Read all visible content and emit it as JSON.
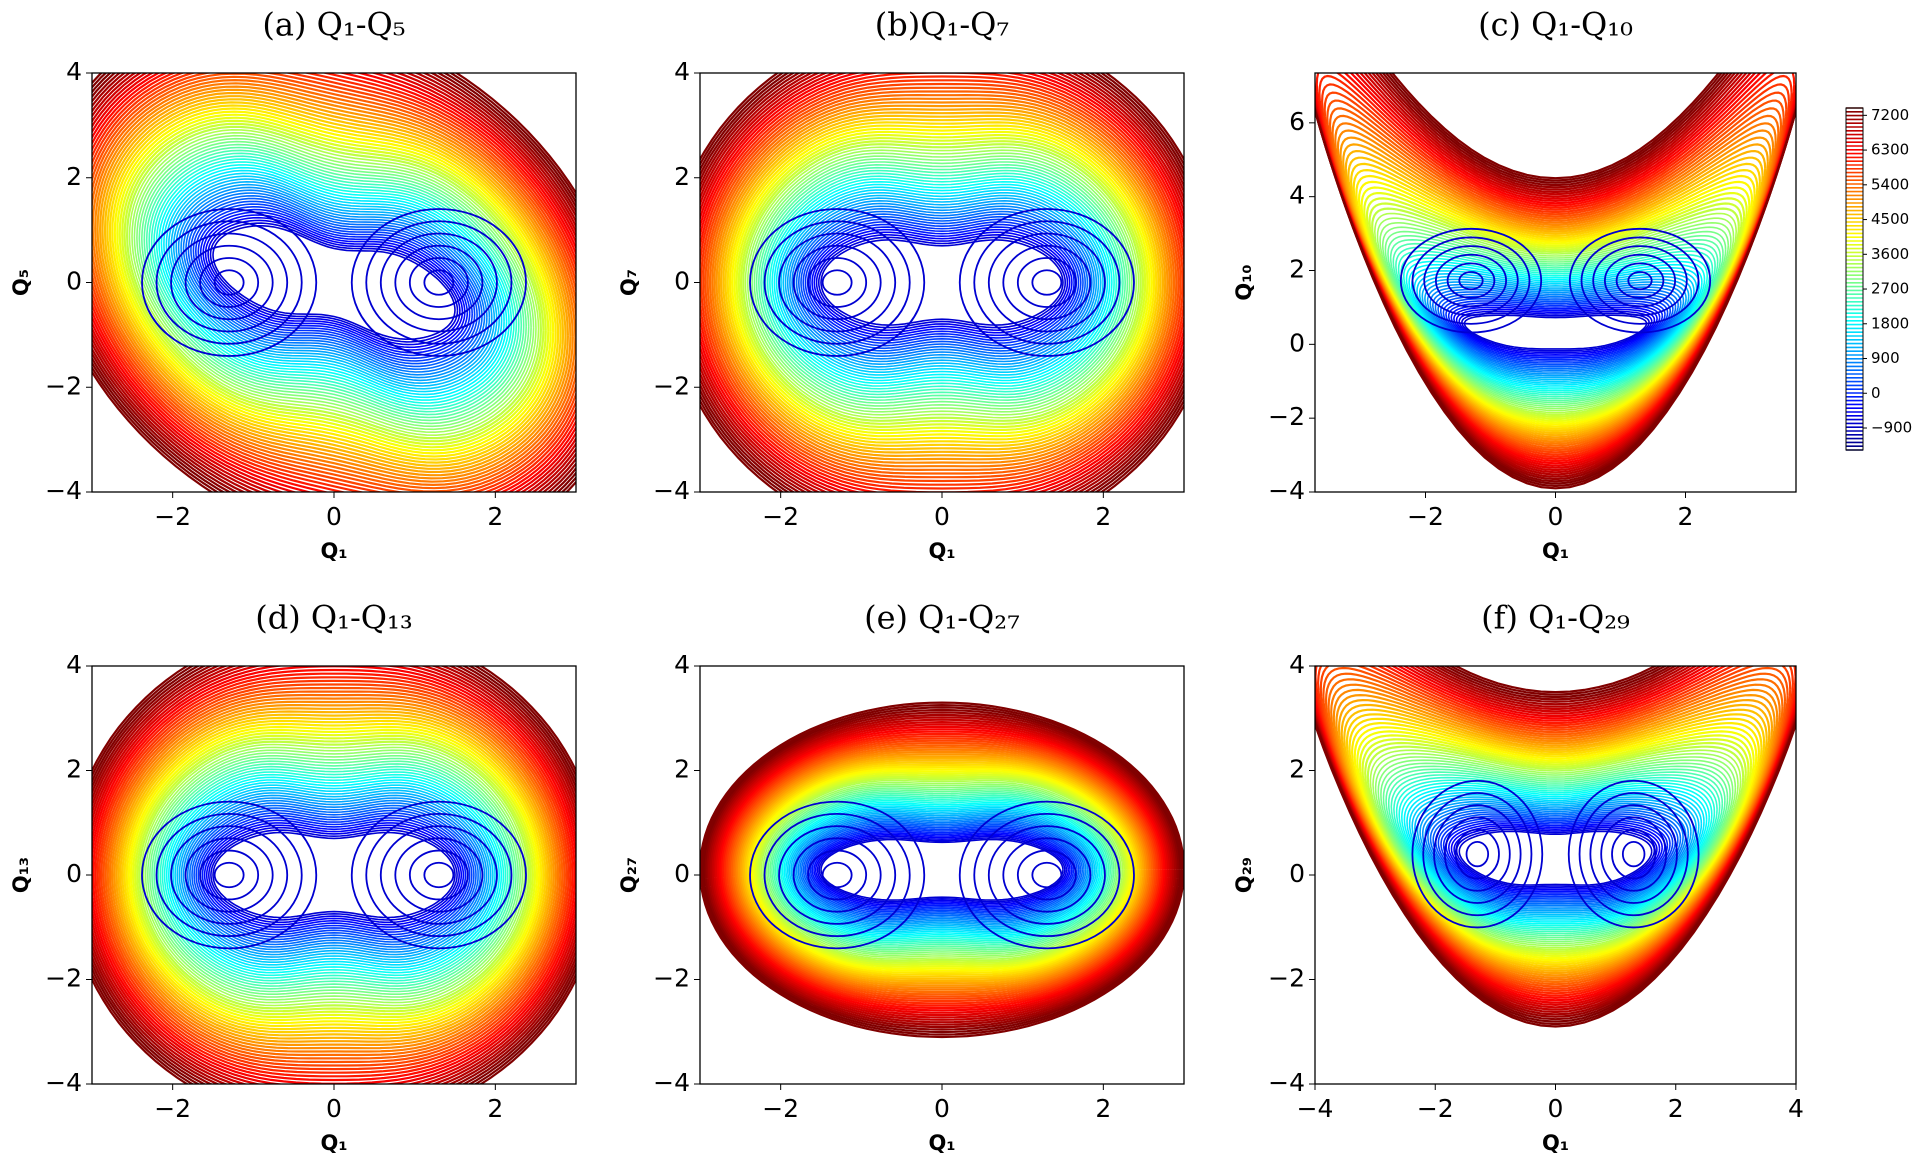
{
  "chart_data": [
    {
      "type": "contour",
      "title": "(a) Q₁-Q₅",
      "x_label": "Q₁",
      "y_label": "Q₅",
      "xlim": [
        -3,
        3
      ],
      "ylim": [
        -4,
        4
      ],
      "xticks": [
        {
          "value": -2,
          "label": "−2"
        },
        0,
        2
      ],
      "yticks": [
        {
          "value": -4,
          "label": "−4"
        },
        {
          "value": -2,
          "label": "−2"
        },
        0,
        2,
        4
      ]
    },
    {
      "type": "contour",
      "title": "(b)Q₁-Q₇",
      "x_label": "Q₁",
      "y_label": "Q₇",
      "xlim": [
        -3,
        3
      ],
      "ylim": [
        -4,
        4
      ],
      "xticks": [
        {
          "value": -2,
          "label": "−2"
        },
        0,
        2
      ],
      "yticks": [
        {
          "value": -4,
          "label": "−4"
        },
        {
          "value": -2,
          "label": "−2"
        },
        0,
        2,
        4
      ]
    },
    {
      "type": "contour",
      "title": "(c) Q₁-Q₁₀",
      "x_label": "Q₁",
      "y_label": "Q₁₀",
      "xlim": [
        -3.7,
        3.7
      ],
      "ylim": [
        -4,
        7.35
      ],
      "xticks": [
        {
          "value": -2,
          "label": "−2"
        },
        0,
        2
      ],
      "yticks": [
        {
          "value": -4,
          "label": "−4"
        },
        {
          "value": -2,
          "label": "−2"
        },
        0,
        2,
        4,
        6
      ]
    },
    {
      "type": "contour",
      "title": "(d) Q₁-Q₁₃",
      "x_label": "Q₁",
      "y_label": "Q₁₃",
      "xlim": [
        -3,
        3
      ],
      "ylim": [
        -4,
        4
      ],
      "xticks": [
        {
          "value": -2,
          "label": "−2"
        },
        0,
        2
      ],
      "yticks": [
        {
          "value": -4,
          "label": "−4"
        },
        {
          "value": -2,
          "label": "−2"
        },
        0,
        2,
        4
      ]
    },
    {
      "type": "contour",
      "title": "(e) Q₁-Q₂₇",
      "x_label": "Q₁",
      "y_label": "Q₂₇",
      "xlim": [
        -3,
        3
      ],
      "ylim": [
        -4,
        4
      ],
      "xticks": [
        {
          "value": -2,
          "label": "−2"
        },
        0,
        2
      ],
      "yticks": [
        {
          "value": -4,
          "label": "−4"
        },
        {
          "value": -2,
          "label": "−2"
        },
        0,
        2,
        4
      ]
    },
    {
      "type": "contour",
      "title": "(f) Q₁-Q₂₉",
      "x_label": "Q₁",
      "y_label": "Q₂₉",
      "xlim": [
        -4,
        4
      ],
      "ylim": [
        -4,
        4
      ],
      "xticks": [
        {
          "value": -4,
          "label": "−4"
        },
        {
          "value": -2,
          "label": "−2"
        },
        0,
        2,
        4
      ],
      "yticks": [
        {
          "value": -4,
          "label": "−4"
        },
        {
          "value": -2,
          "label": "−2"
        },
        0,
        2,
        4
      ]
    }
  ],
  "colorbar": {
    "colormap": "jet",
    "lim": [
      -1470,
      7390
    ],
    "ticks": [
      {
        "value": -900,
        "label": "−900"
      },
      0,
      900,
      1800,
      2700,
      3600,
      4500,
      5400,
      6300,
      7200
    ]
  }
}
